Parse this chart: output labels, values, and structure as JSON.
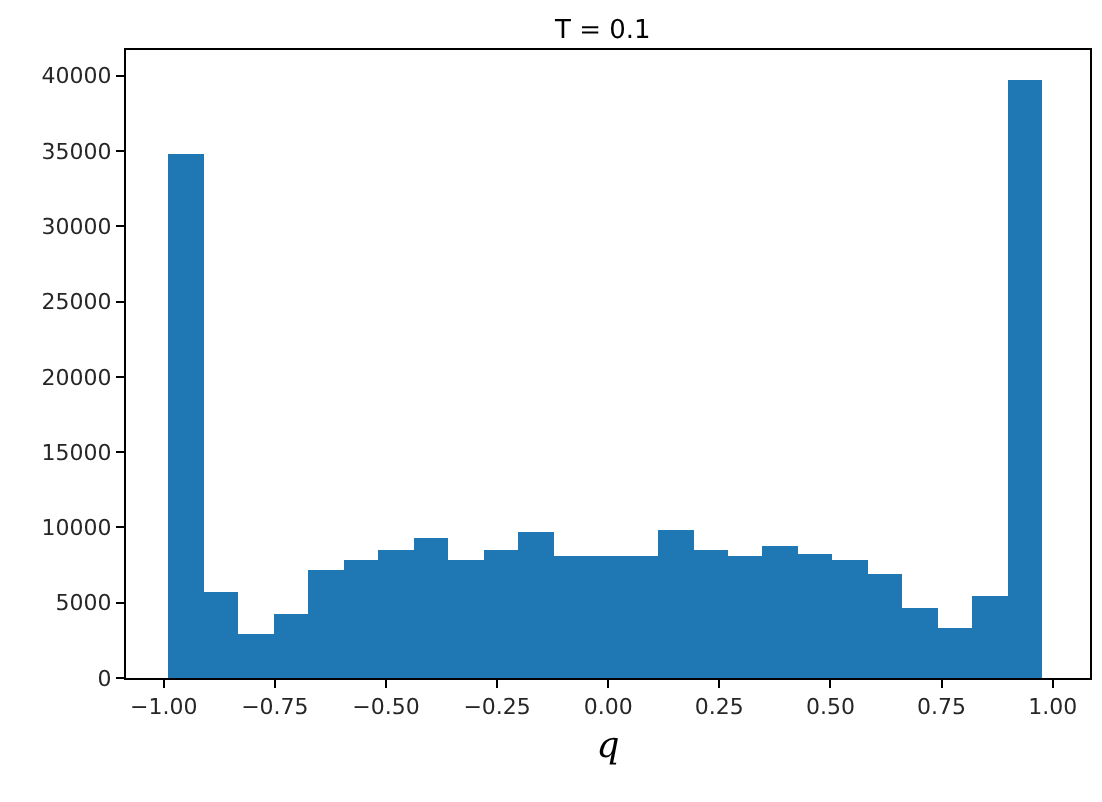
{
  "chart_data": {
    "type": "histogram",
    "title": "T = 0.1",
    "xlabel": "q",
    "bins": [
      -0.99,
      -0.9113,
      -0.8326,
      -0.7538,
      -0.6751,
      -0.5964,
      -0.5177,
      -0.439,
      -0.3602,
      -0.2815,
      -0.2028,
      -0.1241,
      -0.0454,
      0.0334,
      0.1121,
      0.1908,
      0.2695,
      0.3482,
      0.427,
      0.5057,
      0.5844,
      0.6631,
      0.7418,
      0.8206,
      0.8993,
      0.978
    ],
    "values": [
      34800,
      5650,
      2950,
      4300,
      7200,
      7900,
      8500,
      9250,
      7900,
      8500,
      9630,
      8080,
      8080,
      8080,
      9800,
      8500,
      8080,
      8830,
      8270,
      7900,
      6960,
      4670,
      3360,
      5420,
      39700
    ],
    "color": "#1f77b4",
    "xlim": [
      -1.085,
      1.084
    ],
    "xticks": [
      {
        "value": -1,
        "label": "−1.00"
      },
      {
        "value": -0.75,
        "label": "−0.75"
      },
      {
        "value": -0.5,
        "label": "−0.50"
      },
      {
        "value": -0.25,
        "label": "−0.25"
      },
      {
        "value": 0,
        "label": "0.00"
      },
      {
        "value": 0.25,
        "label": "0.25"
      },
      {
        "value": 0.5,
        "label": "0.50"
      },
      {
        "value": 0.75,
        "label": "0.75"
      },
      {
        "value": 1,
        "label": "1.00"
      }
    ],
    "ylim": [
      0,
      41700
    ],
    "yticks": [
      0,
      5000,
      10000,
      15000,
      20000,
      25000,
      30000,
      35000,
      40000
    ],
    "grid": false
  }
}
